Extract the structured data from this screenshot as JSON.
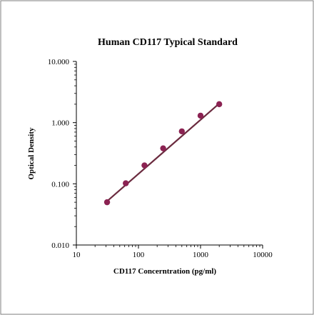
{
  "chart_data": {
    "type": "scatter",
    "title": "Human CD117 Typical Standard",
    "xlabel": "CD117 Concerntration (pg/ml)",
    "ylabel": "Optical Density",
    "x_scale": "log",
    "y_scale": "log",
    "xlim": [
      10,
      10000
    ],
    "ylim": [
      0.01,
      10
    ],
    "x_ticks": [
      "10",
      "100",
      "1000",
      "10000"
    ],
    "y_ticks": [
      "0.010",
      "0.100",
      "1.000",
      "10.000"
    ],
    "grid": false,
    "legend": "none",
    "series": [
      {
        "x": [
          31.25,
          62.5,
          125,
          250,
          500,
          1000,
          2000
        ],
        "y": [
          0.05,
          0.102,
          0.2,
          0.38,
          0.72,
          1.3,
          2.0
        ]
      }
    ],
    "fit_line": {
      "x": [
        31.25,
        2000
      ],
      "y": [
        0.052,
        2.05
      ]
    },
    "colors": {
      "point": "#8b2252",
      "line": "#6b2b3f",
      "axis": "#000000",
      "border": "#7f7f7f"
    }
  }
}
